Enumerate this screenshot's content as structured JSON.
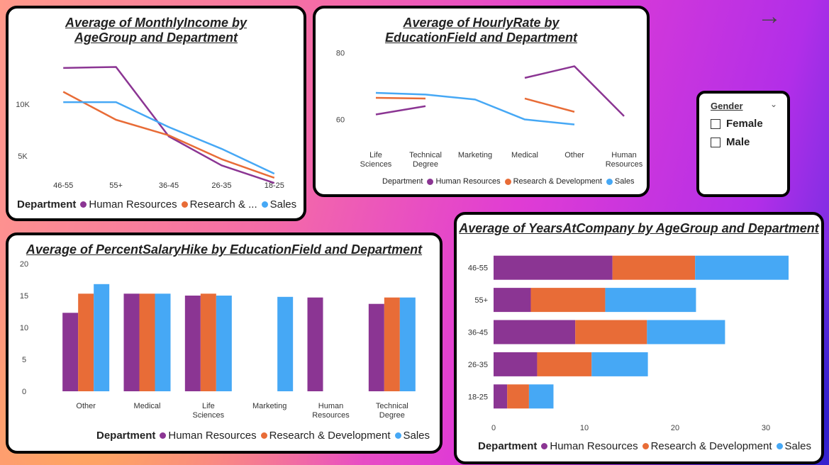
{
  "nav": {
    "arrow_icon": "arrow-right-icon"
  },
  "colors": {
    "hr": "#8b3593",
    "rd": "#e86c37",
    "sales": "#46a8f5"
  },
  "legend": {
    "title": "Department",
    "hr": "Human Resources",
    "rd": "Research & Development",
    "rd_short": "Research & ...",
    "sales": "Sales"
  },
  "slicer": {
    "title": "Gender",
    "options": [
      "Female",
      "Male"
    ]
  },
  "chart_data": [
    {
      "id": "monthly-income",
      "type": "line",
      "title": "Average of MonthlyIncome by AgeGroup and Department",
      "categories": [
        "46-55",
        "55+",
        "36-45",
        "26-35",
        "18-25"
      ],
      "y_ticks": [
        {
          "value": 5000,
          "label": "5K"
        },
        {
          "value": 10000,
          "label": "10K"
        }
      ],
      "ylim": [
        2000,
        15000
      ],
      "series": [
        {
          "name": "Human Resources",
          "values": [
            13500,
            13600,
            6900,
            4100,
            2400
          ]
        },
        {
          "name": "Research & Development",
          "values": [
            11200,
            8500,
            7000,
            4700,
            2900
          ]
        },
        {
          "name": "Sales",
          "values": [
            10200,
            10200,
            7800,
            5700,
            3300
          ]
        }
      ]
    },
    {
      "id": "hourly-rate",
      "type": "line",
      "title": "Average of HourlyRate by EducationField and Department",
      "categories": [
        "Life Sciences",
        "Technical Degree",
        "Marketing",
        "Medical",
        "Other",
        "Human Resources"
      ],
      "y_ticks": [
        {
          "value": 60,
          "label": "60"
        },
        {
          "value": 80,
          "label": "80"
        }
      ],
      "ylim": [
        55,
        81
      ],
      "series": [
        {
          "name": "Human Resources",
          "values": [
            61.5,
            64,
            null,
            72.5,
            76,
            61
          ]
        },
        {
          "name": "Research & Development",
          "values": [
            66.5,
            66.3,
            null,
            66.3,
            62.3,
            null
          ]
        },
        {
          "name": "Sales",
          "values": [
            68,
            67.5,
            66,
            60,
            58.5,
            null
          ]
        }
      ]
    },
    {
      "id": "salary-hike",
      "type": "bar",
      "title": "Average of PercentSalaryHike by EducationField and Department",
      "categories": [
        "Other",
        "Medical",
        "Life Sciences",
        "Marketing",
        "Human Resources",
        "Technical Degree"
      ],
      "y_ticks": [
        {
          "value": 0,
          "label": "0"
        },
        {
          "value": 5,
          "label": "5"
        },
        {
          "value": 10,
          "label": "10"
        },
        {
          "value": 15,
          "label": "15"
        },
        {
          "value": 20,
          "label": "20"
        }
      ],
      "ylim": [
        0,
        20
      ],
      "series": [
        {
          "name": "Human Resources",
          "values": [
            12.3,
            15.3,
            15,
            null,
            14.7,
            13.7
          ]
        },
        {
          "name": "Research & Development",
          "values": [
            15.3,
            15.3,
            15.3,
            null,
            null,
            14.7
          ]
        },
        {
          "name": "Sales",
          "values": [
            16.8,
            15.3,
            15,
            14.8,
            null,
            14.7
          ]
        }
      ]
    },
    {
      "id": "years-at-company",
      "type": "bar",
      "orientation": "horizontal-stacked",
      "title": "Average of YearsAtCompany by AgeGroup and Department",
      "categories": [
        "46-55",
        "55+",
        "36-45",
        "26-35",
        "18-25"
      ],
      "x_ticks": [
        {
          "value": 0,
          "label": "0"
        },
        {
          "value": 10,
          "label": "10"
        },
        {
          "value": 20,
          "label": "20"
        },
        {
          "value": 30,
          "label": "30"
        }
      ],
      "xlim": [
        0,
        35
      ],
      "series": [
        {
          "name": "Human Resources",
          "values": [
            13.1,
            4.1,
            9,
            4.8,
            1.5
          ]
        },
        {
          "name": "Research & Development",
          "values": [
            9.1,
            8.2,
            7.9,
            6,
            2.4
          ]
        },
        {
          "name": "Sales",
          "values": [
            10.3,
            10,
            8.6,
            6.2,
            2.7
          ]
        }
      ]
    }
  ]
}
